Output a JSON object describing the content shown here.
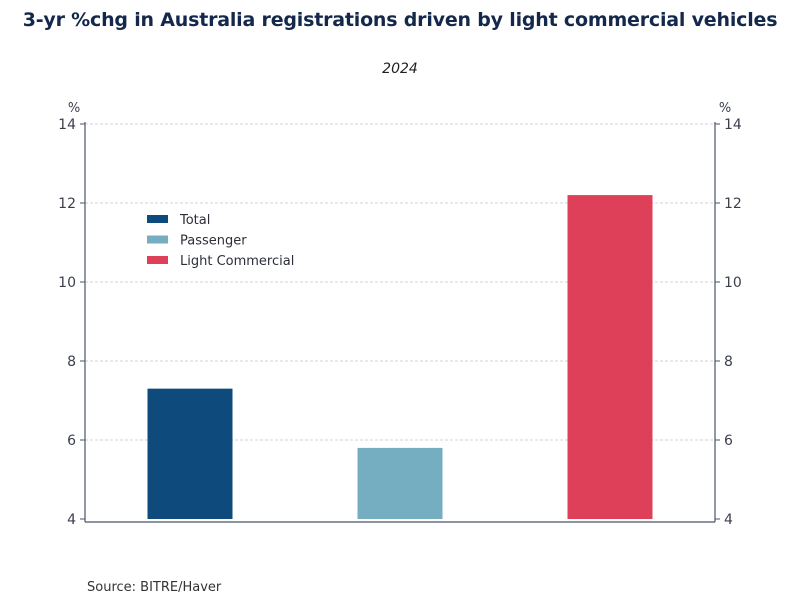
{
  "chart_data": {
    "type": "bar",
    "title": "3-yr %chg in Australia registrations driven by light commercial vehicles",
    "subtitle": "2024",
    "xlabel": "",
    "ylabel": "%",
    "ylabel_right": "%",
    "ylim": [
      4,
      14
    ],
    "yticks": [
      4,
      6,
      8,
      10,
      12,
      14
    ],
    "grid": true,
    "legend_position": "upper-left",
    "categories": [
      "Total",
      "Passenger",
      "Light Commercial"
    ],
    "series": [
      {
        "name": "Total",
        "value": 7.3,
        "color": "#0f4a7d"
      },
      {
        "name": "Passenger",
        "value": 5.8,
        "color": "#75adc1"
      },
      {
        "name": "Light Commercial",
        "value": 12.2,
        "color": "#de405a"
      }
    ],
    "source": "Source:  BITRE/Haver"
  },
  "colors": {
    "title": "#14284b",
    "axis": "#4a5566",
    "grid": "#cfd3d8"
  }
}
